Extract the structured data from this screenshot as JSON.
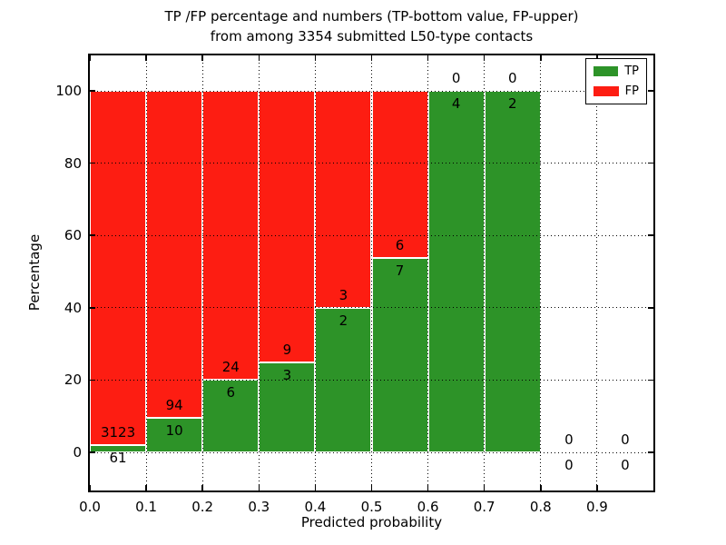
{
  "title": {
    "line1": "TP /FP percentage and numbers (TP-bottom value, FP-upper)",
    "line2": "from among 3354 submitted L50-type contacts"
  },
  "chart_data": {
    "type": "bar",
    "stacked": true,
    "unit": "percent_of_bin",
    "total_contacts": 3354,
    "bin_starts": [
      0.0,
      0.1,
      0.2,
      0.3,
      0.4,
      0.5,
      0.6,
      0.7,
      0.8,
      0.9
    ],
    "bin_width": 0.1,
    "series": [
      {
        "name": "TP",
        "color": "#2d9328",
        "counts": [
          61,
          10,
          6,
          3,
          2,
          7,
          4,
          2,
          0,
          0
        ]
      },
      {
        "name": "FP",
        "color": "#fd1d12",
        "counts": [
          3123,
          94,
          24,
          9,
          3,
          6,
          0,
          0,
          0,
          0
        ]
      }
    ],
    "tp_percent_per_bin": [
      1.9,
      9.6,
      20.0,
      25.0,
      40.0,
      53.8,
      100.0,
      100.0,
      0.0,
      0.0
    ],
    "xlabel": "Predicted probability",
    "ylabel": "Percentage",
    "xticks": [
      "0.0",
      "0.1",
      "0.2",
      "0.3",
      "0.4",
      "0.5",
      "0.6",
      "0.7",
      "0.8",
      "0.9"
    ],
    "yticks": [
      0,
      20,
      40,
      60,
      80,
      100
    ],
    "xlim": [
      0.0,
      1.0
    ],
    "ylim": [
      -10.5,
      110.3
    ],
    "grid": "dotted-black-both-axes",
    "legend": {
      "position": "upper right",
      "entries": [
        "TP",
        "FP"
      ]
    }
  }
}
